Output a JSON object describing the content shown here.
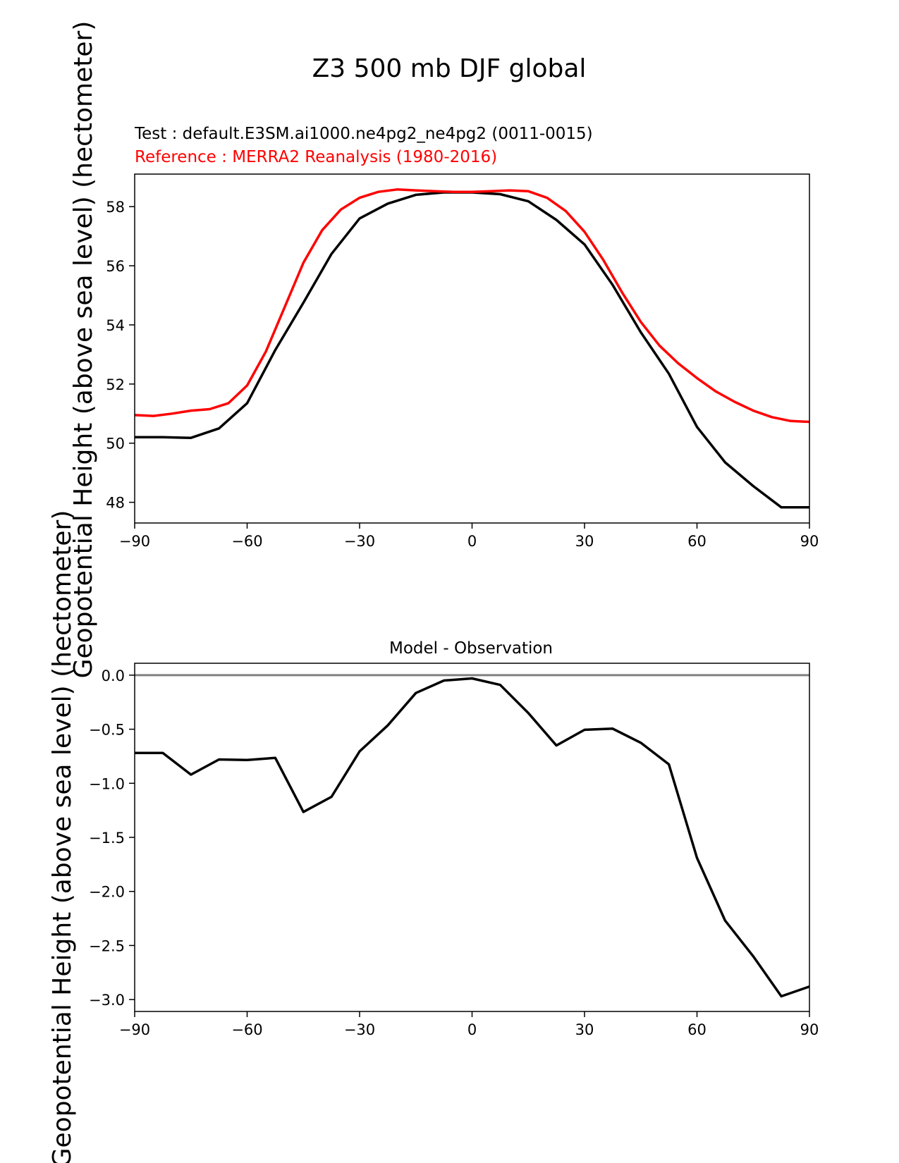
{
  "figure_title": "Z3 500 mb DJF global",
  "chart_data": [
    {
      "type": "line",
      "test_label": "Test : default.E3SM.ai1000.ne4pg2_ne4pg2 (0011-0015)",
      "reference_label": "Reference : MERRA2 Reanalysis (1980-2016)",
      "ylabel": "Geopotential Height (above sea level) (hectometer)",
      "xlabel": "",
      "xlim": [
        -90,
        90
      ],
      "ylim": [
        47.3,
        59.1
      ],
      "xticks": [
        -90,
        -60,
        -30,
        0,
        30,
        60,
        90
      ],
      "xtick_labels": [
        "−90",
        "−60",
        "−30",
        "0",
        "30",
        "60",
        "90"
      ],
      "yticks": [
        48,
        50,
        52,
        54,
        56,
        58
      ],
      "ytick_labels": [
        "48",
        "50",
        "52",
        "54",
        "56",
        "58"
      ],
      "series": [
        {
          "name": "Test",
          "color": "#000000",
          "x": [
            -90,
            -82.5,
            -75,
            -67.5,
            -60,
            -52.5,
            -45,
            -37.5,
            -30,
            -22.5,
            -15,
            -7.5,
            0,
            7.5,
            15,
            22.5,
            30,
            37.5,
            45,
            52.5,
            60,
            67.5,
            75,
            82.5,
            90
          ],
          "values": [
            50.2,
            50.2,
            50.18,
            50.5,
            51.35,
            53.15,
            54.75,
            56.4,
            57.6,
            58.1,
            58.4,
            58.48,
            58.48,
            58.42,
            58.18,
            57.55,
            56.72,
            55.35,
            53.75,
            52.35,
            50.55,
            49.35,
            48.55,
            47.83,
            47.83
          ]
        },
        {
          "name": "Reference",
          "color": "#ff0000",
          "x": [
            -90,
            -85,
            -80,
            -75,
            -70,
            -65,
            -60,
            -55,
            -50,
            -45,
            -40,
            -35,
            -30,
            -25,
            -20,
            -15,
            -10,
            -5,
            0,
            5,
            10,
            15,
            20,
            25,
            30,
            35,
            40,
            45,
            50,
            55,
            60,
            65,
            70,
            75,
            80,
            85,
            90
          ],
          "values": [
            50.95,
            50.92,
            51.0,
            51.1,
            51.15,
            51.35,
            51.95,
            53.1,
            54.6,
            56.1,
            57.2,
            57.9,
            58.3,
            58.5,
            58.58,
            58.55,
            58.52,
            58.5,
            58.5,
            58.52,
            58.55,
            58.52,
            58.3,
            57.85,
            57.15,
            56.2,
            55.1,
            54.1,
            53.3,
            52.7,
            52.2,
            51.75,
            51.4,
            51.1,
            50.88,
            50.75,
            50.72
          ]
        }
      ]
    },
    {
      "type": "line",
      "title": "Model - Observation",
      "ylabel": "Geopotential Height (above sea level) (hectometer)",
      "xlabel": "",
      "xlim": [
        -90,
        90
      ],
      "ylim": [
        -3.11,
        0.11
      ],
      "xticks": [
        -90,
        -60,
        -30,
        0,
        30,
        60,
        90
      ],
      "xtick_labels": [
        "−90",
        "−60",
        "−30",
        "0",
        "30",
        "60",
        "90"
      ],
      "yticks": [
        0.0,
        -0.5,
        -1.0,
        -1.5,
        -2.0,
        -2.5,
        -3.0
      ],
      "ytick_labels": [
        "0.0",
        "−0.5",
        "−1.0",
        "−1.5",
        "−2.0",
        "−2.5",
        "−3.0"
      ],
      "zero_line": {
        "y": 0,
        "color": "#808080"
      },
      "series": [
        {
          "name": "Model - Observation",
          "color": "#000000",
          "x": [
            -90,
            -82.5,
            -75,
            -67.5,
            -60,
            -52.5,
            -45,
            -37.5,
            -30,
            -22.5,
            -15,
            -7.5,
            0,
            7.5,
            15,
            22.5,
            30,
            37.5,
            45,
            52.5,
            60,
            67.5,
            75,
            82.5,
            90
          ],
          "values": [
            -0.72,
            -0.72,
            -0.92,
            -0.78,
            -0.785,
            -0.765,
            -1.265,
            -1.125,
            -0.705,
            -0.465,
            -0.165,
            -0.05,
            -0.03,
            -0.09,
            -0.35,
            -0.65,
            -0.505,
            -0.495,
            -0.625,
            -0.825,
            -1.69,
            -2.27,
            -2.6,
            -2.97,
            -2.88
          ]
        }
      ]
    }
  ]
}
